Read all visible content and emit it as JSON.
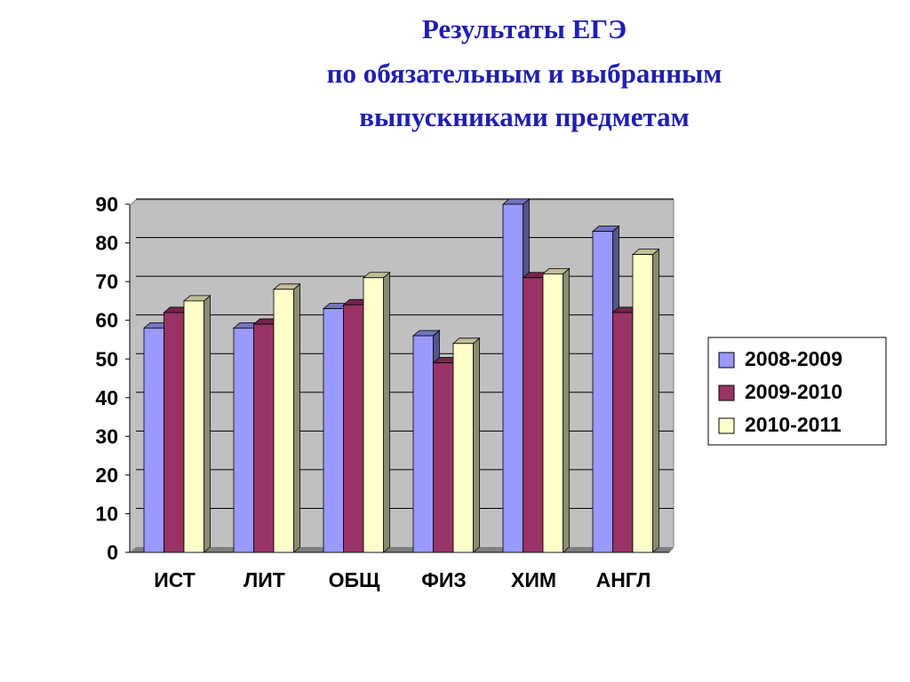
{
  "chart_data": {
    "type": "bar3d",
    "title": [
      "Результаты ЕГЭ",
      "по обязательным и выбранным",
      "выпускниками предметам"
    ],
    "categories": [
      "ИСТ",
      "ЛИТ",
      "ОБЩ",
      "ФИЗ",
      "ХИМ",
      "АНГЛ"
    ],
    "series": [
      {
        "name": "2008-2009",
        "color": "#9999ff",
        "values": [
          58,
          58,
          63,
          56,
          90,
          83
        ]
      },
      {
        "name": "2009-2010",
        "color": "#993366",
        "values": [
          62,
          59,
          64,
          49,
          71,
          62
        ]
      },
      {
        "name": "2010-2011",
        "color": "#ffffcc",
        "values": [
          65,
          68,
          71,
          54,
          72,
          77
        ]
      }
    ],
    "ylim": [
      0,
      90
    ],
    "yticks": [
      0,
      10,
      20,
      30,
      40,
      50,
      60,
      70,
      80,
      90
    ],
    "grid": true,
    "legend": "right"
  }
}
